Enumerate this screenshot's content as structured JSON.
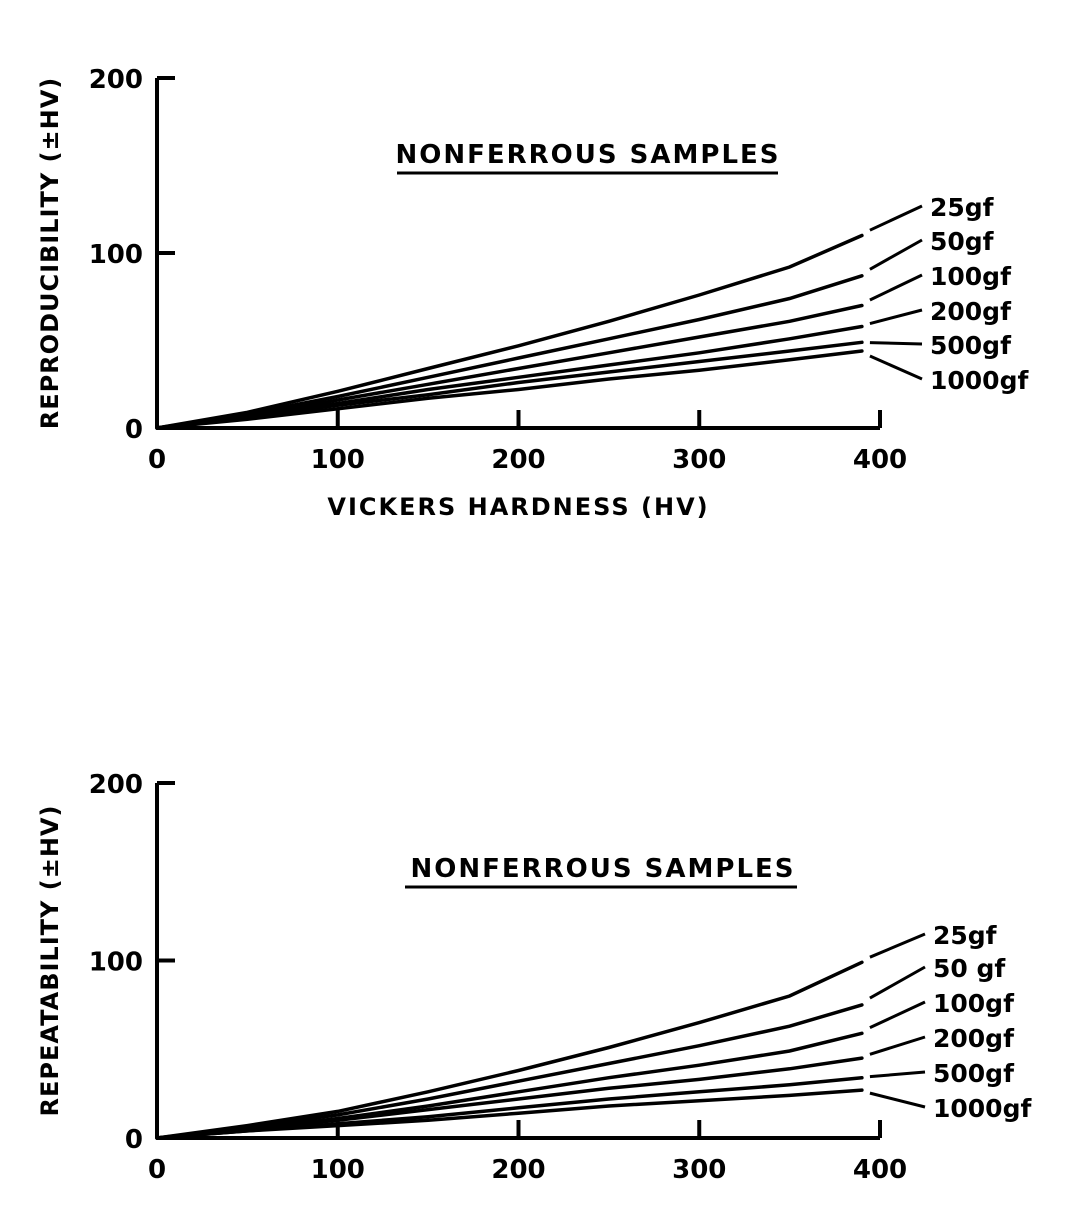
{
  "chart_data": [
    {
      "type": "line",
      "title": "NONFERROUS SAMPLES",
      "xlabel": "VICKERS HARDNESS (HV)",
      "ylabel": "REPRODUCIBILITY (±HV)",
      "xlim": [
        0,
        400
      ],
      "ylim": [
        0,
        200
      ],
      "xticks": [
        "0",
        "100",
        "200",
        "300",
        "400"
      ],
      "yticks": [
        "0",
        "100",
        "200"
      ],
      "grid": false,
      "legend": "right, labels attached to line ends",
      "series": [
        {
          "name": "25gf",
          "x": [
            0,
            50,
            100,
            150,
            200,
            250,
            300,
            350,
            390
          ],
          "y": [
            0,
            9,
            21,
            34,
            47,
            61,
            76,
            92,
            110
          ]
        },
        {
          "name": "50gf",
          "x": [
            0,
            50,
            100,
            150,
            200,
            250,
            300,
            350,
            390
          ],
          "y": [
            0,
            8,
            18,
            29,
            40,
            51,
            62,
            74,
            87
          ]
        },
        {
          "name": "100gf",
          "x": [
            0,
            50,
            100,
            150,
            200,
            250,
            300,
            350,
            390
          ],
          "y": [
            0,
            7,
            16,
            25,
            34,
            43,
            52,
            61,
            70
          ]
        },
        {
          "name": "200gf",
          "x": [
            0,
            50,
            100,
            150,
            200,
            250,
            300,
            350,
            390
          ],
          "y": [
            0,
            7,
            14,
            22,
            29,
            36,
            43,
            51,
            58
          ]
        },
        {
          "name": "500gf",
          "x": [
            0,
            50,
            100,
            150,
            200,
            250,
            300,
            350,
            390
          ],
          "y": [
            0,
            6,
            13,
            19,
            26,
            32,
            38,
            44,
            49
          ]
        },
        {
          "name": "1000gf",
          "x": [
            0,
            50,
            100,
            150,
            200,
            250,
            300,
            350,
            390
          ],
          "y": [
            0,
            5,
            11,
            17,
            22,
            28,
            33,
            39,
            44
          ]
        }
      ]
    },
    {
      "type": "line",
      "title": "NONFERROUS SAMPLES",
      "xlabel": "",
      "ylabel": "REPEATABILITY (±HV)",
      "xlim": [
        0,
        400
      ],
      "ylim": [
        0,
        200
      ],
      "xticks": [
        "0",
        "100",
        "200",
        "300",
        "400"
      ],
      "yticks": [
        "0",
        "100",
        "200"
      ],
      "grid": false,
      "legend": "right, labels attached to line ends",
      "series": [
        {
          "name": "25gf",
          "x": [
            0,
            50,
            100,
            150,
            200,
            250,
            300,
            350,
            390
          ],
          "y": [
            0,
            7,
            15,
            26,
            38,
            51,
            65,
            80,
            99
          ]
        },
        {
          "name": "50 gf",
          "x": [
            0,
            50,
            100,
            150,
            200,
            250,
            300,
            350,
            390
          ],
          "y": [
            0,
            6,
            13,
            22,
            32,
            42,
            52,
            63,
            75
          ]
        },
        {
          "name": "100gf",
          "x": [
            0,
            50,
            100,
            150,
            200,
            250,
            300,
            350,
            390
          ],
          "y": [
            0,
            5,
            11,
            18,
            26,
            34,
            41,
            49,
            59
          ]
        },
        {
          "name": "200gf",
          "x": [
            0,
            50,
            100,
            150,
            200,
            250,
            300,
            350,
            390
          ],
          "y": [
            0,
            5,
            10,
            16,
            22,
            28,
            33,
            39,
            45
          ]
        },
        {
          "name": "500gf",
          "x": [
            0,
            50,
            100,
            150,
            200,
            250,
            300,
            350,
            390
          ],
          "y": [
            0,
            4,
            8,
            12,
            17,
            22,
            26,
            30,
            34
          ]
        },
        {
          "name": "1000gf",
          "x": [
            0,
            50,
            100,
            150,
            200,
            250,
            300,
            350,
            390
          ],
          "y": [
            0,
            4,
            7,
            10,
            14,
            18,
            21,
            24,
            27
          ]
        }
      ]
    }
  ]
}
